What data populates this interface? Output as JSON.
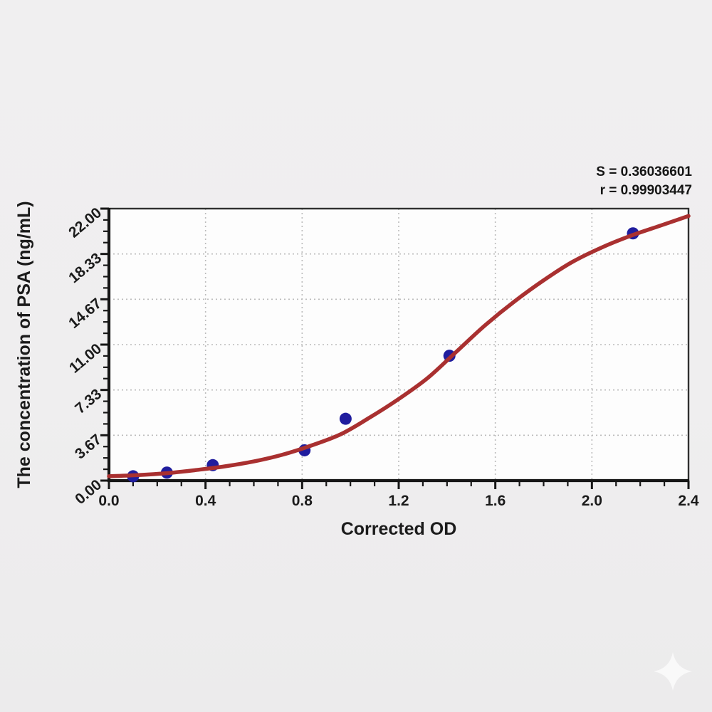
{
  "page": {
    "background_color": "#eeedee",
    "plot_background_color": "#fdfdfd"
  },
  "annotation": {
    "s_label": "S = 0.36036601",
    "r_label": "r = 0.99903447"
  },
  "chart_data": {
    "type": "scatter",
    "title": "",
    "xlabel": "Corrected OD",
    "ylabel": "The concentration of PSA (ng/mL)",
    "xlim": [
      0,
      2.4
    ],
    "ylim": [
      0,
      22
    ],
    "x_major_ticks": [
      0,
      0.4,
      0.8,
      1.2,
      1.6,
      2.0,
      2.4
    ],
    "x_tick_labels": [
      "0.0",
      "0.4",
      "0.8",
      "1.2",
      "1.6",
      "2.0",
      "2.4"
    ],
    "x_minor_tick_step": 0.1,
    "y_major_ticks": [
      0,
      3.667,
      7.333,
      11,
      14.667,
      18.333,
      22
    ],
    "y_tick_labels": [
      "0.00",
      "3.67",
      "7.33",
      "11.00",
      "14.67",
      "18.33",
      "22.00"
    ],
    "y_minor_divisions_per_major": 4,
    "grid": "dotted-major-both-axes",
    "legend_position": "none",
    "series": [
      {
        "name": "standard-points",
        "type": "scatter",
        "points": [
          [
            0.1,
            0.35
          ],
          [
            0.24,
            0.65
          ],
          [
            0.43,
            1.25
          ],
          [
            0.81,
            2.45
          ],
          [
            0.98,
            5.0
          ],
          [
            1.41,
            10.1
          ],
          [
            2.17,
            20.0
          ]
        ]
      },
      {
        "name": "fitted-standard-curve",
        "type": "line",
        "points": [
          [
            0.0,
            0.35
          ],
          [
            0.12,
            0.45
          ],
          [
            0.24,
            0.6
          ],
          [
            0.36,
            0.85
          ],
          [
            0.48,
            1.15
          ],
          [
            0.6,
            1.55
          ],
          [
            0.72,
            2.1
          ],
          [
            0.84,
            2.85
          ],
          [
            0.96,
            3.75
          ],
          [
            1.08,
            5.1
          ],
          [
            1.2,
            6.6
          ],
          [
            1.32,
            8.3
          ],
          [
            1.44,
            10.45
          ],
          [
            1.56,
            12.6
          ],
          [
            1.68,
            14.5
          ],
          [
            1.8,
            16.2
          ],
          [
            1.92,
            17.7
          ],
          [
            2.04,
            18.85
          ],
          [
            2.16,
            19.8
          ],
          [
            2.28,
            20.6
          ],
          [
            2.4,
            21.4
          ]
        ]
      }
    ],
    "colors": {
      "curve": "#a93030",
      "point": "#201d9e",
      "grid": "#bcbcbc",
      "axis": "#161616",
      "frame": "#303030",
      "text": "#1b1b1b"
    }
  },
  "watermark": {
    "icon": "four-point-star-sparkle"
  }
}
